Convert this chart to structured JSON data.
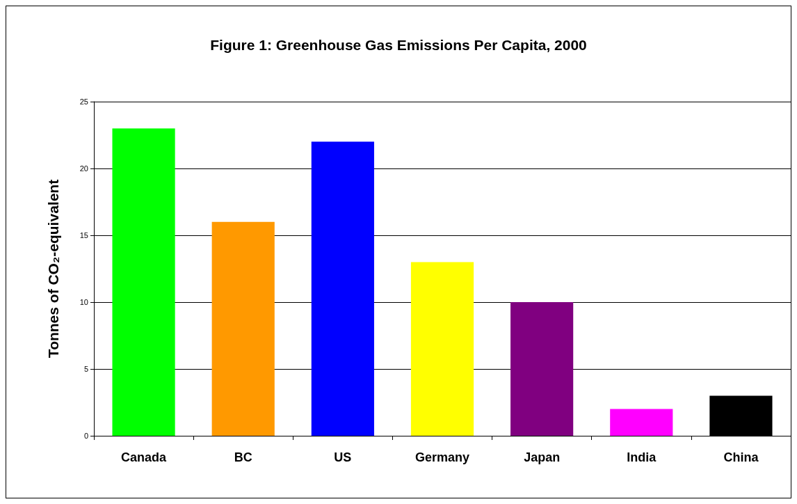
{
  "chart_data": {
    "type": "bar",
    "title": "Figure 1: Greenhouse Gas Emissions Per Capita, 2000",
    "ylabel": "Tonnes of CO₂-equivalent",
    "categories": [
      "Canada",
      "BC",
      "US",
      "Germany",
      "Japan",
      "India",
      "China"
    ],
    "values": [
      23,
      16,
      22,
      13,
      10,
      2,
      3
    ],
    "colors": [
      "#00ff00",
      "#ff9900",
      "#0000ff",
      "#ffff00",
      "#800080",
      "#ff00ff",
      "#000000"
    ],
    "ylim": [
      0,
      25
    ],
    "yticks": [
      0,
      5,
      10,
      15,
      20,
      25
    ],
    "grid": "y"
  }
}
